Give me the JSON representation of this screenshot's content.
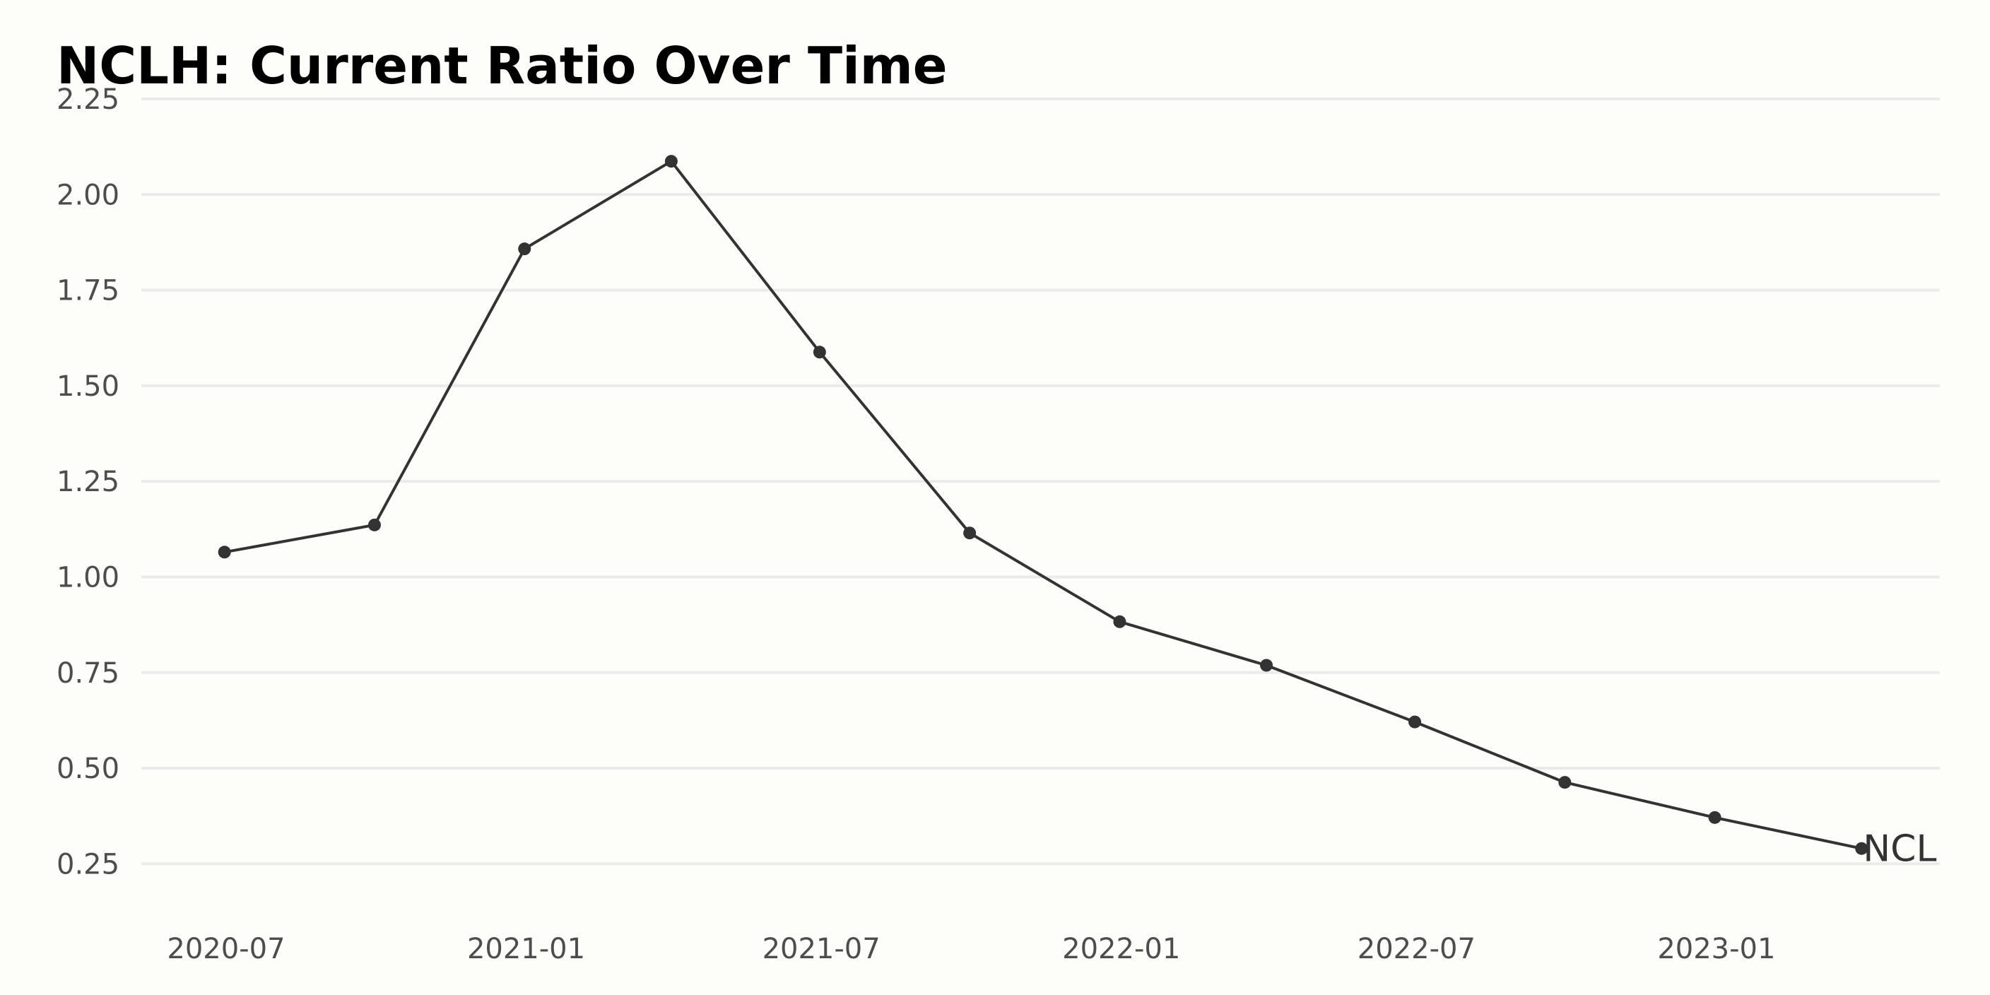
{
  "chart_data": {
    "type": "line",
    "title": "NCLH: Current Ratio Over Time",
    "xlabel": "",
    "ylabel": "",
    "x": [
      "2020-06-30",
      "2020-09-30",
      "2020-12-31",
      "2021-03-31",
      "2021-06-30",
      "2021-09-30",
      "2021-12-31",
      "2022-03-31",
      "2022-06-30",
      "2022-09-30",
      "2022-12-31",
      "2023-03-31"
    ],
    "series": [
      {
        "name": "NCLH",
        "values": [
          1.065,
          1.136,
          1.858,
          2.087,
          1.588,
          1.115,
          0.883,
          0.769,
          0.621,
          0.463,
          0.371,
          0.29
        ]
      }
    ],
    "x_ticks": [
      {
        "label": "2020-07",
        "date": "2020-07-01"
      },
      {
        "label": "2021-01",
        "date": "2021-01-01"
      },
      {
        "label": "2021-07",
        "date": "2021-07-01"
      },
      {
        "label": "2022-01",
        "date": "2022-01-01"
      },
      {
        "label": "2022-07",
        "date": "2022-07-01"
      },
      {
        "label": "2023-01",
        "date": "2023-01-01"
      }
    ],
    "y_ticks": [
      "0.25",
      "0.50",
      "0.75",
      "1.00",
      "1.25",
      "1.50",
      "1.75",
      "2.00",
      "2.25"
    ],
    "ylim": [
      0.125,
      2.25
    ],
    "xlim": [
      "2020-05-10",
      "2023-05-18"
    ],
    "grid": "horizontal",
    "end_label": "NCLH",
    "colors": {
      "background": "#fdfdf9",
      "line": "#333333",
      "grid": "#ebebeb",
      "tick_text": "#4d4d4d"
    }
  }
}
